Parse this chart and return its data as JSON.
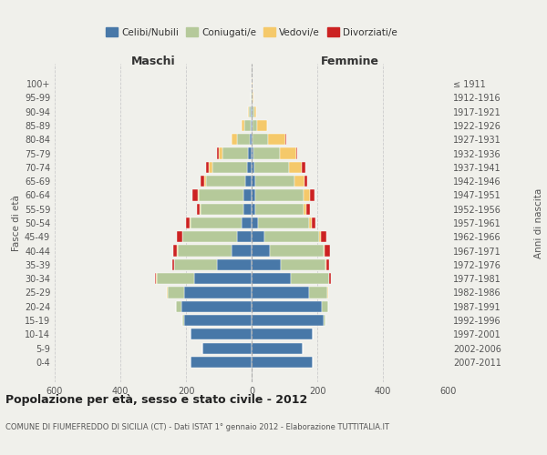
{
  "age_groups": [
    "0-4",
    "5-9",
    "10-14",
    "15-19",
    "20-24",
    "25-29",
    "30-34",
    "35-39",
    "40-44",
    "45-49",
    "50-54",
    "55-59",
    "60-64",
    "65-69",
    "70-74",
    "75-79",
    "80-84",
    "85-89",
    "90-94",
    "95-99",
    "100+"
  ],
  "birth_years": [
    "2007-2011",
    "2002-2006",
    "1997-2001",
    "1992-1996",
    "1987-1991",
    "1982-1986",
    "1977-1981",
    "1972-1976",
    "1967-1971",
    "1962-1966",
    "1957-1961",
    "1952-1956",
    "1947-1951",
    "1942-1946",
    "1937-1941",
    "1932-1936",
    "1927-1931",
    "1922-1926",
    "1917-1921",
    "1912-1916",
    "≤ 1911"
  ],
  "males": {
    "celibi": [
      185,
      150,
      185,
      205,
      215,
      205,
      175,
      105,
      60,
      45,
      30,
      25,
      25,
      20,
      15,
      10,
      5,
      4,
      2,
      1,
      0
    ],
    "coniugati": [
      0,
      0,
      2,
      5,
      15,
      50,
      115,
      130,
      165,
      165,
      155,
      130,
      135,
      120,
      105,
      80,
      40,
      18,
      5,
      2,
      1
    ],
    "vedovi": [
      0,
      0,
      0,
      0,
      1,
      2,
      2,
      2,
      2,
      2,
      3,
      3,
      5,
      5,
      10,
      10,
      15,
      8,
      3,
      1,
      0
    ],
    "divorziati": [
      0,
      0,
      0,
      0,
      0,
      2,
      3,
      5,
      12,
      15,
      12,
      10,
      15,
      10,
      8,
      5,
      1,
      0,
      0,
      0,
      0
    ]
  },
  "females": {
    "nubili": [
      185,
      155,
      185,
      220,
      215,
      175,
      120,
      90,
      55,
      40,
      20,
      12,
      12,
      10,
      8,
      5,
      4,
      3,
      2,
      1,
      0
    ],
    "coniugate": [
      0,
      0,
      2,
      5,
      18,
      55,
      115,
      135,
      165,
      165,
      155,
      145,
      145,
      120,
      105,
      80,
      45,
      15,
      5,
      2,
      1
    ],
    "vedove": [
      0,
      0,
      0,
      0,
      1,
      2,
      2,
      3,
      3,
      5,
      8,
      10,
      20,
      30,
      40,
      50,
      55,
      30,
      8,
      3,
      1
    ],
    "divorziate": [
      0,
      0,
      0,
      0,
      0,
      2,
      5,
      8,
      15,
      18,
      12,
      10,
      15,
      10,
      10,
      5,
      2,
      0,
      0,
      0,
      0
    ]
  },
  "colors": {
    "celibi": "#4878a8",
    "coniugati": "#b5c99a",
    "vedovi": "#f5c96a",
    "divorziati": "#cc2222"
  },
  "xlim": 600,
  "title": "Popolazione per età, sesso e stato civile - 2012",
  "subtitle": "COMUNE DI FIUMEFREDDO DI SICILIA (CT) - Dati ISTAT 1° gennaio 2012 - Elaborazione TUTTITALIA.IT",
  "ylabel_left": "Fasce di età",
  "ylabel_right": "Anni di nascita",
  "xlabel_left": "Maschi",
  "xlabel_right": "Femmine",
  "background_color": "#f0f0eb"
}
